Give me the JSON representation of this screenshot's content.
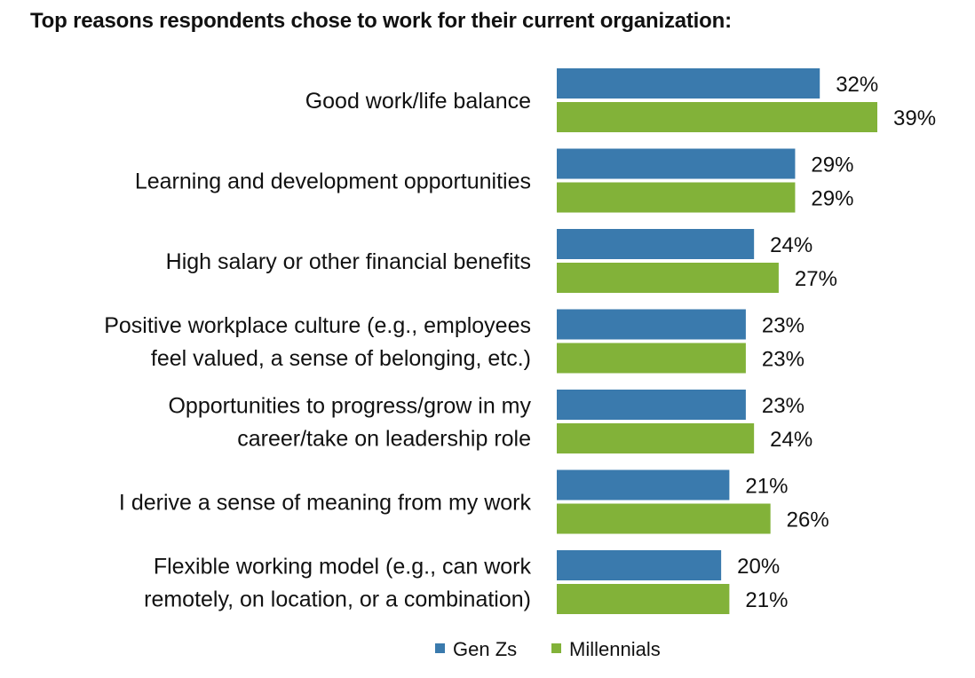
{
  "chart_data": {
    "type": "bar",
    "orientation": "horizontal",
    "title": "Top reasons respondents chose to work for their current organization:",
    "categories": [
      [
        "Good work/life balance"
      ],
      [
        "Learning and development opportunities"
      ],
      [
        "High salary or other financial benefits"
      ],
      [
        "Positive workplace culture (e.g., employees",
        "feel valued, a sense of belonging, etc.)"
      ],
      [
        "Opportunities to progress/grow in my",
        "career/take on leadership role"
      ],
      [
        "I derive a sense of meaning from my work"
      ],
      [
        "Flexible working model (e.g., can work",
        "remotely, on location, or a combination)"
      ]
    ],
    "series": [
      {
        "name": "Gen Zs",
        "color": "#3a7aad",
        "values": [
          32,
          29,
          24,
          23,
          23,
          21,
          20
        ],
        "labels": [
          "32%",
          "29%",
          "24%",
          "23%",
          "23%",
          "21%",
          "20%"
        ]
      },
      {
        "name": "Millennials",
        "color": "#82b239",
        "values": [
          39,
          29,
          27,
          23,
          24,
          26,
          21
        ],
        "labels": [
          "39%",
          "29%",
          "27%",
          "23%",
          "24%",
          "26%",
          "21%"
        ]
      }
    ],
    "xlim": [
      0,
      39
    ],
    "grid": false,
    "legend": "bottom"
  }
}
